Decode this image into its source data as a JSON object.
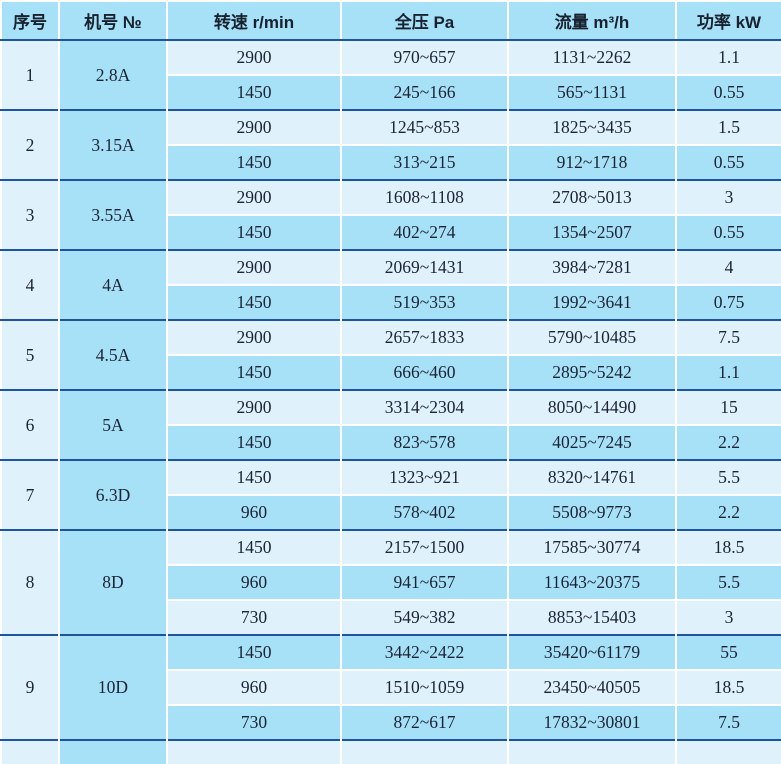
{
  "table": {
    "headers": [
      "序号",
      "机号 №",
      "转速 r/min",
      "全压 Pa",
      "流量 m³/h",
      "功率 kW"
    ],
    "groups": [
      {
        "index": "1",
        "model": "2.8A",
        "rows": [
          {
            "speed": "2900",
            "pressure": "970~657",
            "flow": "1131~2262",
            "power": "1.1"
          },
          {
            "speed": "1450",
            "pressure": "245~166",
            "flow": "565~1131",
            "power": "0.55"
          }
        ]
      },
      {
        "index": "2",
        "model": "3.15A",
        "rows": [
          {
            "speed": "2900",
            "pressure": "1245~853",
            "flow": "1825~3435",
            "power": "1.5"
          },
          {
            "speed": "1450",
            "pressure": "313~215",
            "flow": "912~1718",
            "power": "0.55"
          }
        ]
      },
      {
        "index": "3",
        "model": "3.55A",
        "rows": [
          {
            "speed": "2900",
            "pressure": "1608~1108",
            "flow": "2708~5013",
            "power": "3"
          },
          {
            "speed": "1450",
            "pressure": "402~274",
            "flow": "1354~2507",
            "power": "0.55"
          }
        ]
      },
      {
        "index": "4",
        "model": "4A",
        "rows": [
          {
            "speed": "2900",
            "pressure": "2069~1431",
            "flow": "3984~7281",
            "power": "4"
          },
          {
            "speed": "1450",
            "pressure": "519~353",
            "flow": "1992~3641",
            "power": "0.75"
          }
        ]
      },
      {
        "index": "5",
        "model": "4.5A",
        "rows": [
          {
            "speed": "2900",
            "pressure": "2657~1833",
            "flow": "5790~10485",
            "power": "7.5"
          },
          {
            "speed": "1450",
            "pressure": "666~460",
            "flow": "2895~5242",
            "power": "1.1"
          }
        ]
      },
      {
        "index": "6",
        "model": "5A",
        "rows": [
          {
            "speed": "2900",
            "pressure": "3314~2304",
            "flow": "8050~14490",
            "power": "15"
          },
          {
            "speed": "1450",
            "pressure": "823~578",
            "flow": "4025~7245",
            "power": "2.2"
          }
        ]
      },
      {
        "index": "7",
        "model": "6.3D",
        "rows": [
          {
            "speed": "1450",
            "pressure": "1323~921",
            "flow": "8320~14761",
            "power": "5.5"
          },
          {
            "speed": "960",
            "pressure": "578~402",
            "flow": "5508~9773",
            "power": "2.2"
          }
        ]
      },
      {
        "index": "8",
        "model": "8D",
        "rows": [
          {
            "speed": "1450",
            "pressure": "2157~1500",
            "flow": "17585~30774",
            "power": "18.5"
          },
          {
            "speed": "960",
            "pressure": "941~657",
            "flow": "11643~20375",
            "power": "5.5"
          },
          {
            "speed": "730",
            "pressure": "549~382",
            "flow": "8853~15403",
            "power": "3"
          }
        ]
      },
      {
        "index": "9",
        "model": "10D",
        "rows": [
          {
            "speed": "1450",
            "pressure": "3442~2422",
            "flow": "35420~61179",
            "power": "55"
          },
          {
            "speed": "960",
            "pressure": "1510~1059",
            "flow": "23450~40505",
            "power": "18.5"
          },
          {
            "speed": "730",
            "pressure": "872~617",
            "flow": "17832~30801",
            "power": "7.5"
          }
        ]
      }
    ],
    "colors": {
      "row_light": "#dff1fb",
      "row_medium": "#a7e1f7",
      "header_bg": "#a7e1f7",
      "group_separator": "#1e549f",
      "cell_border": "#ffffff",
      "text": "#1c2335"
    }
  }
}
